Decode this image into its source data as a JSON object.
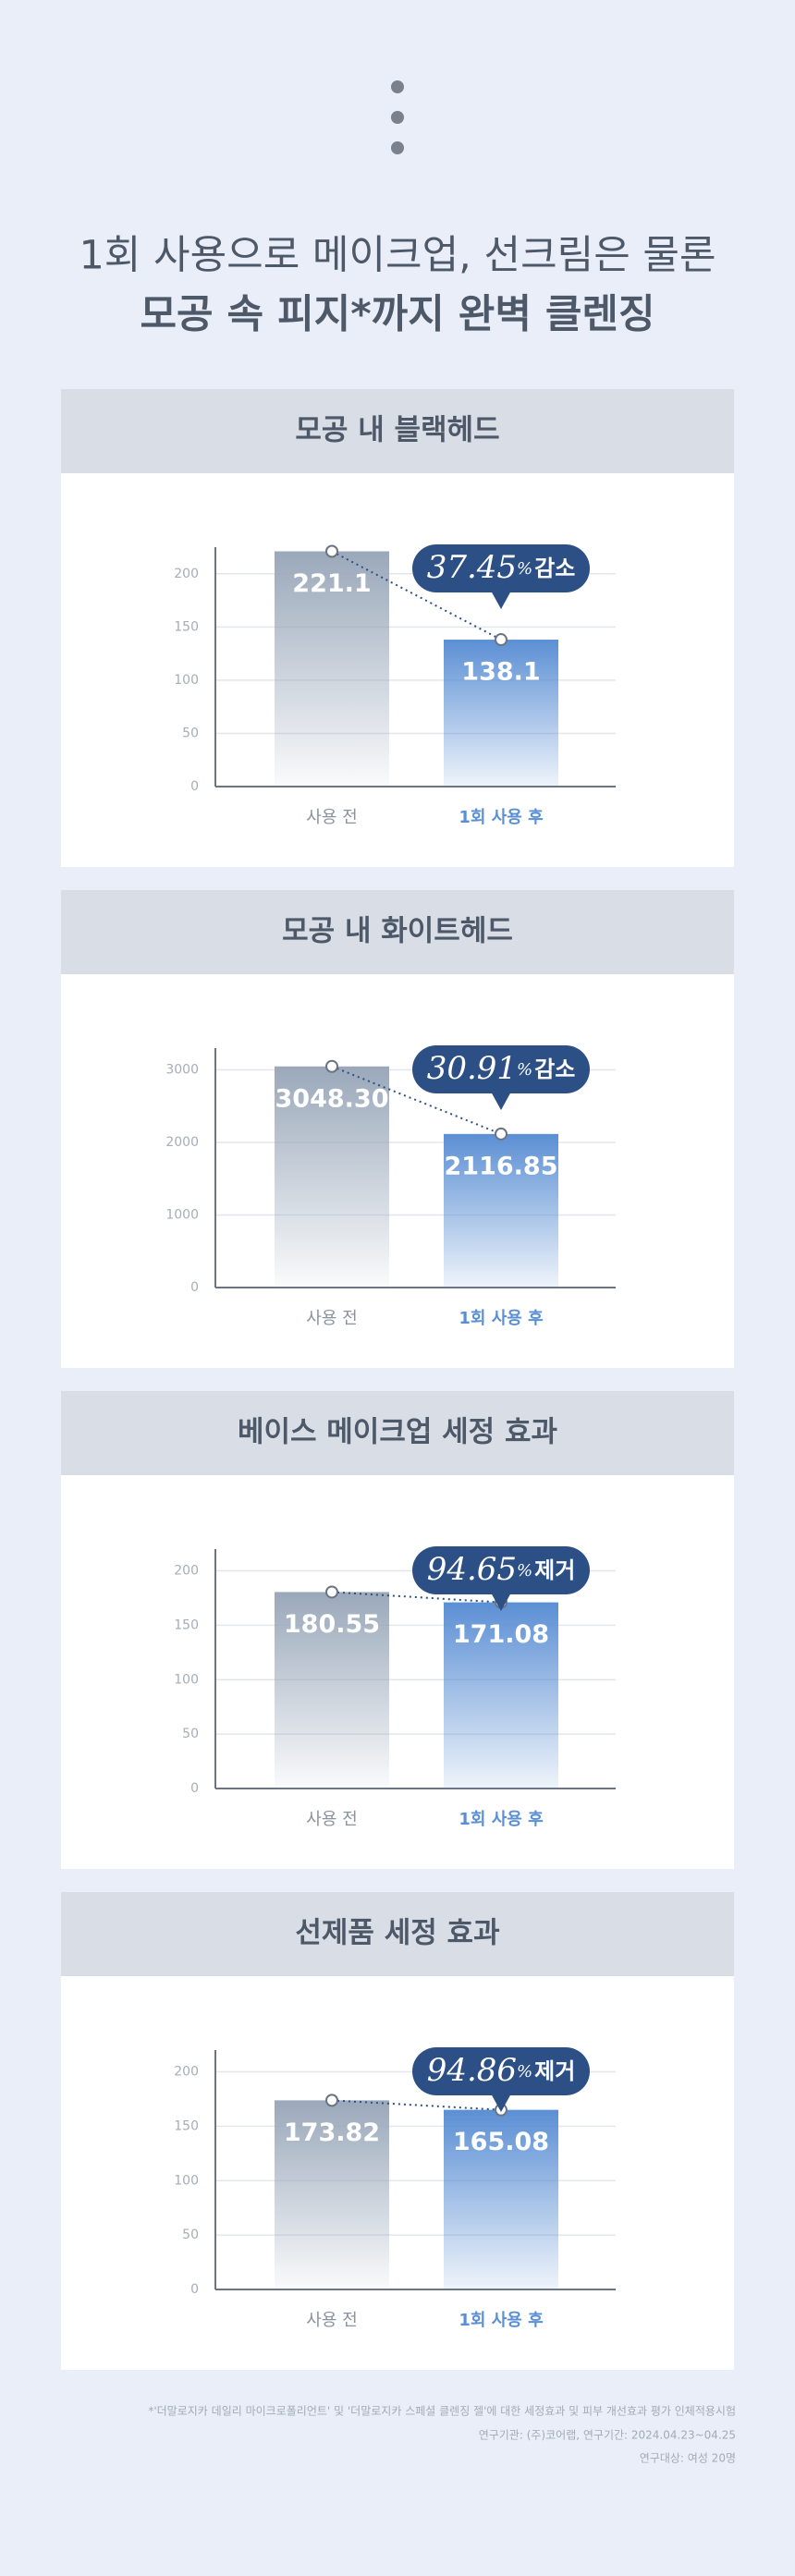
{
  "header": {
    "lines": [
      "1회 사용으로 메이크업, 선크림은 물론",
      "모공 속 피지*까지 완벽 클렌징"
    ]
  },
  "chart_data": [
    {
      "type": "bar",
      "title": "모공 내 블랙헤드",
      "categories": [
        "사용 전",
        "1회 사용 후"
      ],
      "values": [
        221.1,
        138.1
      ],
      "colors": [
        "#9aa8ba",
        "#5b8fd4"
      ],
      "ylim": [
        0,
        225
      ],
      "yticks": [
        0,
        50,
        100,
        150,
        200
      ],
      "grid": true,
      "badge": {
        "number": "37.45",
        "unit": "%",
        "label": "감소"
      }
    },
    {
      "type": "bar",
      "title": "모공 내 화이트헤드",
      "categories": [
        "사용 전",
        "1회 사용 후"
      ],
      "values": [
        3048.3,
        2116.85
      ],
      "value_labels": [
        "3048.30",
        "2116.85"
      ],
      "colors": [
        "#9aa8ba",
        "#5b8fd4"
      ],
      "ylim": [
        0,
        3300
      ],
      "yticks": [
        0,
        1000,
        2000,
        3000
      ],
      "grid": true,
      "badge": {
        "number": "30.91",
        "unit": "%",
        "label": "감소"
      }
    },
    {
      "type": "bar",
      "title": "베이스 메이크업 세정 효과",
      "categories": [
        "사용 전",
        "1회 사용 후"
      ],
      "values": [
        180.55,
        171.08
      ],
      "colors": [
        "#9aa8ba",
        "#5b8fd4"
      ],
      "ylim": [
        0,
        220
      ],
      "yticks": [
        0,
        50,
        100,
        150,
        200
      ],
      "grid": true,
      "badge": {
        "number": "94.65",
        "unit": "%",
        "label": "제거"
      }
    },
    {
      "type": "bar",
      "title": "선제품 세정 효과",
      "categories": [
        "사용 전",
        "1회 사용 후"
      ],
      "values": [
        173.82,
        165.08
      ],
      "colors": [
        "#9aa8ba",
        "#5b8fd4"
      ],
      "ylim": [
        0,
        220
      ],
      "yticks": [
        0,
        50,
        100,
        150,
        200
      ],
      "grid": true,
      "badge": {
        "number": "94.86",
        "unit": "%",
        "label": "제거"
      }
    }
  ],
  "footnote": [
    "*'더말로지카 데일리 마이크로폴리언트' 및 '더말로지카 스페셜 클렌징 젤'에 대한 세정효과 및 피부 개선효과 평가 인체적용시험",
    "연구기관: (주)코어랩, 연구기간: 2024.04.23~04.25",
    "연구대상: 여성 20명"
  ]
}
